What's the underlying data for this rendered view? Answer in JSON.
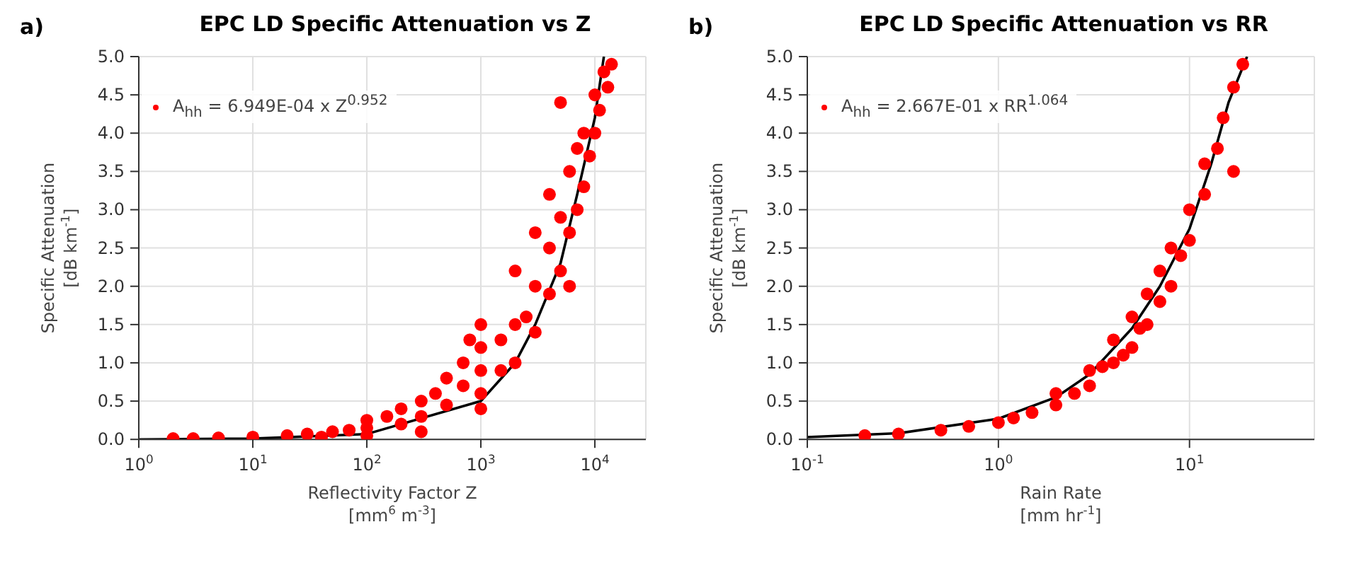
{
  "chart_data": [
    {
      "type": "scatter",
      "title": "EPC LD Specific Attenuation vs Z",
      "xlabel": "Reflectivity Factor Z\n[mm$^{6}$ m$^{-3}$]",
      "ylabel": "Specific Attenuation\n[dB km$^{-1}$]",
      "annotations": [
        "a)"
      ],
      "log": "x",
      "grid": true,
      "legend": "top left",
      "xlim": [
        1,
        28000
      ],
      "xticks": [
        {
          "value": 1,
          "label": "10$^{0}$"
        },
        {
          "value": 10,
          "label": "10$^{1}$"
        },
        {
          "value": 100,
          "label": "10$^{2}$"
        },
        {
          "value": 1000,
          "label": "10$^{3}$"
        },
        {
          "value": 10000,
          "label": "10$^{4}$"
        }
      ],
      "ylim": [
        0,
        5
      ],
      "yticks": [
        {
          "value": 0,
          "label": "0.0"
        },
        0.5,
        {
          "value": 1,
          "label": "1.0"
        },
        1.5,
        {
          "value": 2,
          "label": "2.0"
        },
        2.5,
        {
          "value": 3,
          "label": "3.0"
        },
        3.5,
        {
          "value": 4,
          "label": "4.0"
        },
        4.5,
        {
          "value": 5,
          "label": "5.0"
        }
      ],
      "series": [
        {
          "marker": "circle",
          "name": "A$_{hh}$ = 6.949E-04 x Z$^{0.952}$",
          "color": "#ff0000",
          "x": [
            2,
            3,
            5,
            10,
            20,
            40,
            30,
            50,
            70,
            100,
            100,
            100,
            150,
            200,
            200,
            300,
            300,
            300,
            400,
            500,
            500,
            700,
            700,
            800,
            1000,
            1000,
            1000,
            1000,
            1000,
            1500,
            1500,
            2000,
            2000,
            2000,
            2500,
            3000,
            3000,
            3000,
            4000,
            4000,
            4000,
            5000,
            5000,
            5000,
            6000,
            6000,
            6000,
            7000,
            7000,
            8000,
            8000,
            9000,
            10000,
            10000,
            11000,
            12000,
            13000,
            14000
          ],
          "values": [
            0.01,
            0.01,
            0.02,
            0.03,
            0.05,
            0.03,
            0.07,
            0.1,
            0.12,
            0.05,
            0.15,
            0.25,
            0.3,
            0.2,
            0.4,
            0.1,
            0.3,
            0.5,
            0.6,
            0.45,
            0.8,
            0.7,
            1.0,
            1.3,
            0.4,
            0.6,
            0.9,
            1.2,
            1.5,
            0.9,
            1.3,
            1.0,
            1.5,
            2.2,
            1.6,
            1.4,
            2.0,
            2.7,
            1.9,
            2.5,
            3.2,
            2.2,
            2.9,
            4.4,
            2.0,
            2.7,
            3.5,
            3.0,
            3.8,
            3.3,
            4.0,
            3.7,
            4.0,
            4.5,
            4.3,
            4.8,
            4.6,
            4.9
          ]
        },
        {
          "type": "line",
          "marker": "none",
          "color": "#000000",
          "x": [
            1,
            10,
            100,
            1000,
            2000,
            3000,
            5000,
            7000,
            10000,
            12000
          ],
          "values": [
            0,
            0.01,
            0.07,
            0.5,
            1.0,
            1.5,
            2.3,
            3.2,
            4.2,
            5.0
          ]
        }
      ]
    },
    {
      "type": "scatter",
      "title": "EPC LD Specific Attenuation vs RR",
      "xlabel": "Rain Rate\n[mm hr$^{-1}$]",
      "ylabel": "Specific Attenuation\n[dB km$^{-1}$]",
      "annotations": [
        "b)"
      ],
      "log": "x",
      "grid": true,
      "legend": "top left",
      "xlim": [
        0.1,
        45
      ],
      "xticks": [
        {
          "value": 0.1,
          "label": "10$^{-1}$"
        },
        {
          "value": 1,
          "label": "10$^{0}$"
        },
        {
          "value": 10,
          "label": "10$^{1}$"
        }
      ],
      "ylim": [
        0,
        5
      ],
      "yticks": [
        {
          "value": 0,
          "label": "0.0"
        },
        0.5,
        {
          "value": 1,
          "label": "1.0"
        },
        1.5,
        {
          "value": 2,
          "label": "2.0"
        },
        2.5,
        {
          "value": 3,
          "label": "3.0"
        },
        3.5,
        {
          "value": 4,
          "label": "4.0"
        },
        4.5,
        {
          "value": 5,
          "label": "5.0"
        }
      ],
      "series": [
        {
          "marker": "circle",
          "name": "A$_{hh}$ = 2.667E-01 x RR$^{1.064}$",
          "color": "#ff0000",
          "x": [
            0.2,
            0.3,
            0.5,
            0.7,
            1,
            1.2,
            1.5,
            2,
            2,
            2.5,
            3,
            3,
            3.5,
            4,
            4,
            4.5,
            5,
            5,
            5.5,
            6,
            6,
            7,
            7,
            8,
            8,
            9,
            10,
            10,
            12,
            12,
            14,
            15,
            17,
            17,
            19
          ],
          "values": [
            0.05,
            0.07,
            0.12,
            0.17,
            0.22,
            0.28,
            0.35,
            0.45,
            0.6,
            0.6,
            0.7,
            0.9,
            0.95,
            1.0,
            1.3,
            1.1,
            1.2,
            1.6,
            1.45,
            1.5,
            1.9,
            1.8,
            2.2,
            2.0,
            2.5,
            2.4,
            2.6,
            3.0,
            3.2,
            3.6,
            3.8,
            4.2,
            3.5,
            4.6,
            4.9
          ]
        },
        {
          "type": "line",
          "marker": "none",
          "color": "#000000",
          "x": [
            0.1,
            0.3,
            1,
            2,
            3,
            5,
            7,
            10,
            13,
            16,
            20
          ],
          "values": [
            0.03,
            0.08,
            0.27,
            0.55,
            0.85,
            1.45,
            2.0,
            2.75,
            3.6,
            4.4,
            5.0
          ]
        }
      ]
    }
  ]
}
